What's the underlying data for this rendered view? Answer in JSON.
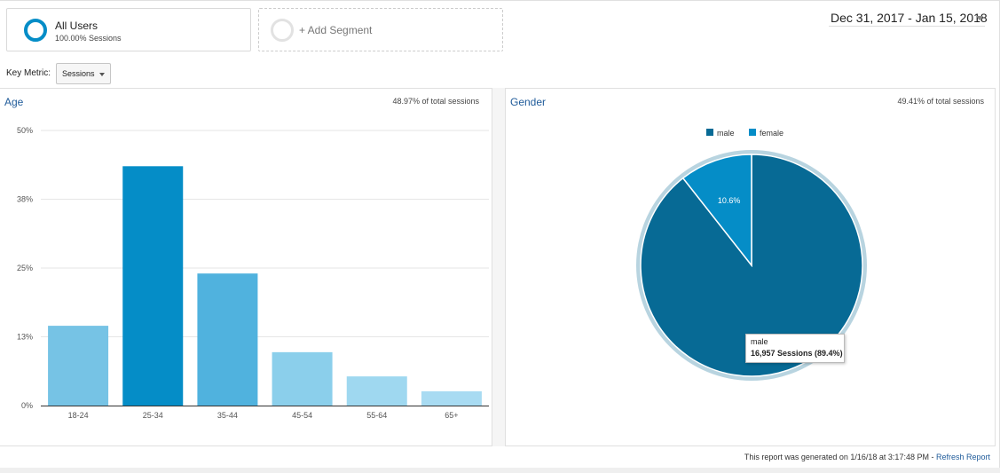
{
  "segments": {
    "all_users": {
      "name": "All Users",
      "sub": "100.00% Sessions"
    },
    "add_segment": {
      "label": "+ Add Segment"
    }
  },
  "date_range": "Dec 31, 2017 - Jan 15, 2018",
  "key_metric": {
    "label": "Key Metric:",
    "value": "Sessions"
  },
  "age_panel": {
    "title": "Age",
    "stat": "48.97% of total sessions"
  },
  "gender_panel": {
    "title": "Gender",
    "stat": "49.41% of total sessions"
  },
  "tooltip": {
    "line1": "male",
    "line2": "16,957 Sessions (89.4%)"
  },
  "footer": {
    "text": "This report was generated on 1/16/18 at 3:17:48 PM - ",
    "link": "Refresh Report"
  },
  "colors": {
    "accent": "#058dc7",
    "title": "#1f5b9a",
    "male": "#076a95",
    "female": "#058dc7",
    "pie_ring": "#b8d4e0"
  },
  "chart_data": [
    {
      "type": "bar",
      "title": "Age",
      "categories": [
        "18-24",
        "25-34",
        "35-44",
        "45-54",
        "55-64",
        "65+"
      ],
      "values": [
        14.5,
        43.5,
        24.0,
        9.7,
        5.3,
        2.6
      ],
      "bar_colors": [
        "#76c3e5",
        "#058dc7",
        "#50b2de",
        "#8bcfeb",
        "#9fd8f0",
        "#a8dbf2"
      ],
      "yticks": [
        0,
        12.5,
        25,
        37.5,
        50
      ],
      "ytick_labels": [
        "0%",
        "13%",
        "25%",
        "38%",
        "50%"
      ],
      "ylim": [
        0,
        50
      ],
      "grid": true
    },
    {
      "type": "pie",
      "title": "Gender",
      "legend": [
        "male",
        "female"
      ],
      "legend_placement": "top-center",
      "slices": [
        {
          "label": "male",
          "value": 89.4,
          "sessions": 16957,
          "color": "#076a95"
        },
        {
          "label": "female",
          "value": 10.6,
          "color": "#058dc7",
          "data_label": "10.6%"
        }
      ]
    }
  ]
}
